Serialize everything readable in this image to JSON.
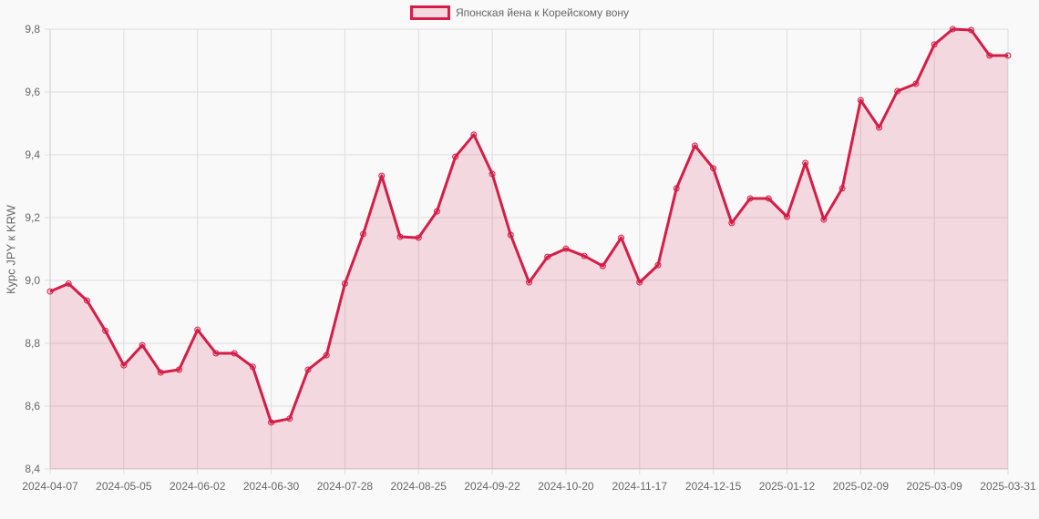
{
  "legend": {
    "label": "Японская йена к Корейскому вону",
    "color": "#d41d47"
  },
  "chart_data": {
    "type": "area",
    "title": "",
    "xlabel": "",
    "ylabel": "Курс JPY к KRW",
    "ylim": [
      8.4,
      9.8
    ],
    "yticks": [
      "9,8",
      "9,6",
      "9,4",
      "9,2",
      "9,0",
      "8,8",
      "8,6",
      "8,4"
    ],
    "ytick_values": [
      9.8,
      9.6,
      9.4,
      9.2,
      9.0,
      8.8,
      8.6,
      8.4
    ],
    "xtick_labels": [
      "2024-04-07",
      "2024-05-05",
      "2024-06-02",
      "2024-06-30",
      "2024-07-28",
      "2024-08-25",
      "2024-09-22",
      "2024-10-20",
      "2024-11-17",
      "2024-12-15",
      "2025-01-12",
      "2025-02-09",
      "2025-03-09",
      "2025-03-31"
    ],
    "xtick_indices": [
      0,
      4,
      8,
      12,
      16,
      20,
      24,
      28,
      32,
      36,
      40,
      44,
      48,
      52
    ],
    "grid": true,
    "legend_position": "top",
    "series": [
      {
        "name": "Японская йена к Корейскому вону",
        "color": "#d41d47",
        "fill": "rgba(212,29,71,0.15)",
        "values": [
          8.965,
          8.99,
          8.936,
          8.84,
          8.73,
          8.794,
          8.707,
          8.716,
          8.843,
          8.768,
          8.768,
          8.725,
          8.548,
          8.56,
          8.716,
          8.762,
          8.99,
          9.148,
          9.333,
          9.139,
          9.136,
          9.22,
          9.394,
          9.464,
          9.339,
          9.145,
          8.994,
          9.075,
          9.101,
          9.078,
          9.046,
          9.136,
          8.994,
          9.049,
          9.293,
          9.429,
          9.357,
          9.183,
          9.261,
          9.261,
          9.203,
          9.374,
          9.194,
          9.293,
          9.574,
          9.487,
          9.603,
          9.626,
          9.751,
          9.8,
          9.797,
          9.716,
          9.716
        ]
      }
    ]
  }
}
